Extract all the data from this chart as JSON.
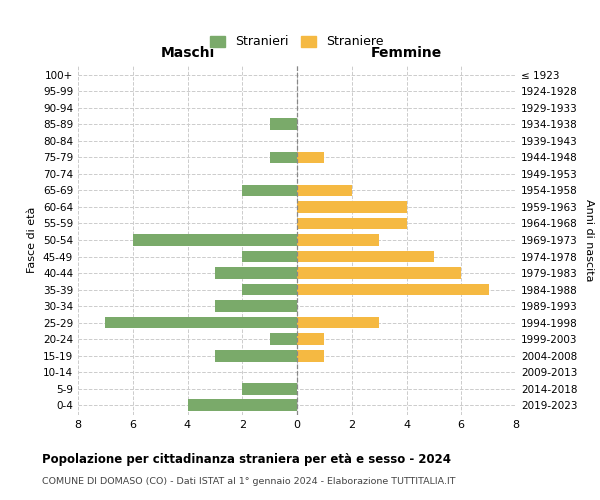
{
  "age_groups": [
    "0-4",
    "5-9",
    "10-14",
    "15-19",
    "20-24",
    "25-29",
    "30-34",
    "35-39",
    "40-44",
    "45-49",
    "50-54",
    "55-59",
    "60-64",
    "65-69",
    "70-74",
    "75-79",
    "80-84",
    "85-89",
    "90-94",
    "95-99",
    "100+"
  ],
  "birth_years": [
    "2019-2023",
    "2014-2018",
    "2009-2013",
    "2004-2008",
    "1999-2003",
    "1994-1998",
    "1989-1993",
    "1984-1988",
    "1979-1983",
    "1974-1978",
    "1969-1973",
    "1964-1968",
    "1959-1963",
    "1954-1958",
    "1949-1953",
    "1944-1948",
    "1939-1943",
    "1934-1938",
    "1929-1933",
    "1924-1928",
    "≤ 1923"
  ],
  "maschi": [
    4,
    2,
    0,
    3,
    1,
    7,
    3,
    2,
    3,
    2,
    6,
    0,
    0,
    2,
    0,
    1,
    0,
    1,
    0,
    0,
    0
  ],
  "femmine": [
    0,
    0,
    0,
    1,
    1,
    3,
    0,
    7,
    6,
    5,
    3,
    4,
    4,
    2,
    0,
    1,
    0,
    0,
    0,
    0,
    0
  ],
  "male_color": "#7aaa6a",
  "female_color": "#f5b942",
  "background_color": "#ffffff",
  "grid_color": "#cccccc",
  "bar_height": 0.72,
  "xlim": 8,
  "title": "Popolazione per cittadinanza straniera per età e sesso - 2024",
  "subtitle": "COMUNE DI DOMASO (CO) - Dati ISTAT al 1° gennaio 2024 - Elaborazione TUTTITALIA.IT",
  "xlabel_maschi": "Maschi",
  "xlabel_femmine": "Femmine",
  "ylabel_left": "Fasce di età",
  "ylabel_right": "Anni di nascita",
  "legend_maschi": "Stranieri",
  "legend_femmine": "Straniere"
}
